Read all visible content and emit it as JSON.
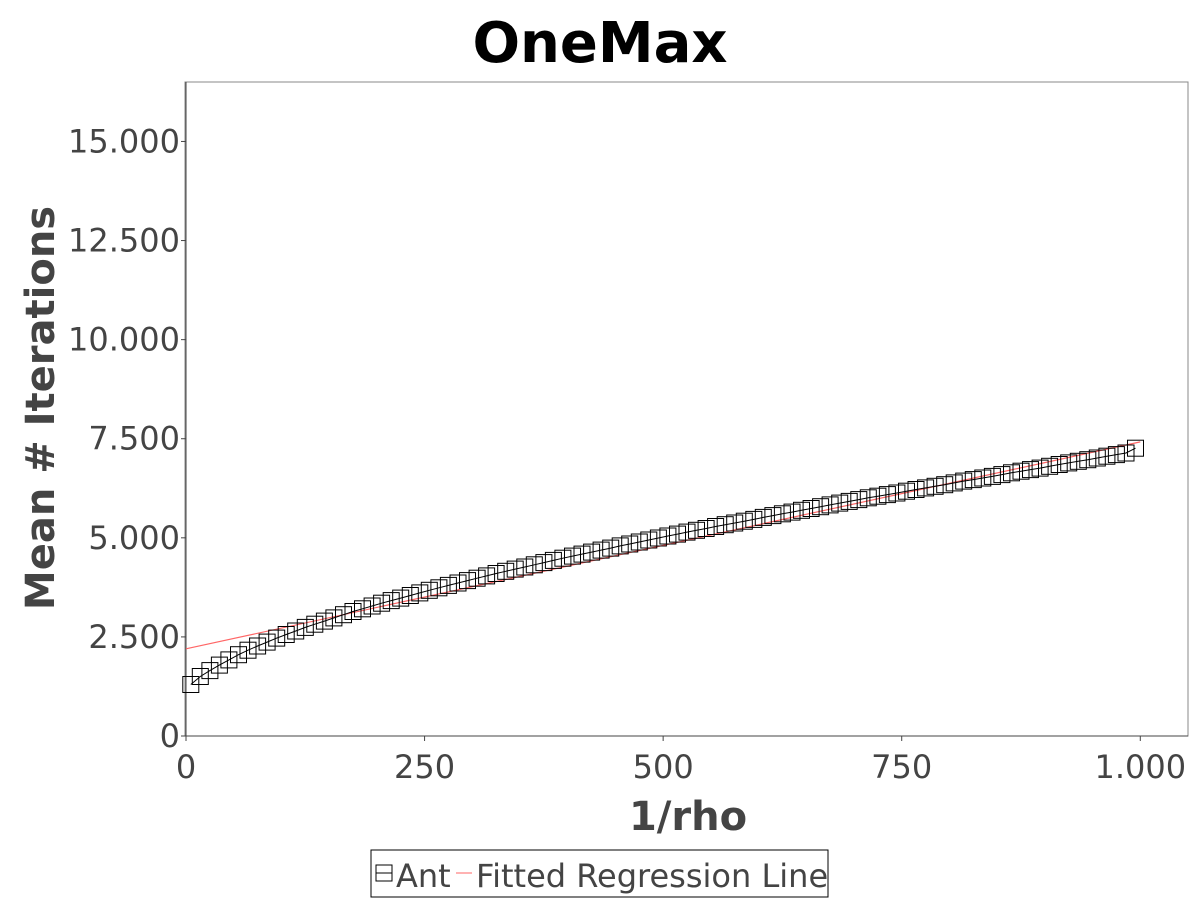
{
  "chart_data": {
    "type": "scatter",
    "title": "OneMax",
    "xlabel": "1/rho",
    "ylabel": "Mean # Iterations",
    "xlim": [
      0,
      1050
    ],
    "ylim": [
      0,
      16500
    ],
    "x_ticks": [
      0,
      250,
      500,
      750,
      1000
    ],
    "x_tick_labels": [
      "0",
      "250",
      "500",
      "750",
      "1.000"
    ],
    "y_ticks": [
      0,
      2500,
      5000,
      7500,
      10000,
      12500,
      15000
    ],
    "y_tick_labels": [
      "0",
      "2.500",
      "5.000",
      "7.500",
      "10.000",
      "12.500",
      "15.000"
    ],
    "grid": false,
    "legend_position": "bottom-center",
    "series": [
      {
        "name": "Ant",
        "marker": "square",
        "color": "#000000",
        "x": [
          5,
          15,
          25,
          35,
          45,
          55,
          65,
          75,
          85,
          95,
          105,
          115,
          125,
          135,
          145,
          155,
          165,
          175,
          185,
          195,
          205,
          215,
          225,
          235,
          245,
          255,
          265,
          275,
          285,
          295,
          305,
          315,
          325,
          335,
          345,
          355,
          365,
          375,
          385,
          395,
          405,
          415,
          425,
          435,
          445,
          455,
          465,
          475,
          485,
          495,
          505,
          515,
          525,
          535,
          545,
          555,
          565,
          575,
          585,
          595,
          605,
          615,
          625,
          635,
          645,
          655,
          665,
          675,
          685,
          695,
          705,
          715,
          725,
          735,
          745,
          755,
          765,
          775,
          785,
          795,
          805,
          815,
          825,
          835,
          845,
          855,
          865,
          875,
          885,
          895,
          905,
          915,
          925,
          935,
          945,
          955,
          965,
          975,
          985,
          995
        ],
        "y": [
          1300,
          1500,
          1650,
          1790,
          1920,
          2050,
          2165,
          2270,
          2370,
          2470,
          2560,
          2650,
          2740,
          2820,
          2900,
          2980,
          3060,
          3140,
          3210,
          3280,
          3350,
          3415,
          3480,
          3545,
          3610,
          3675,
          3740,
          3800,
          3860,
          3920,
          3980,
          4040,
          4100,
          4155,
          4210,
          4265,
          4320,
          4375,
          4430,
          4485,
          4540,
          4590,
          4640,
          4690,
          4740,
          4795,
          4845,
          4895,
          4945,
          4995,
          5045,
          5095,
          5145,
          5190,
          5235,
          5285,
          5330,
          5375,
          5420,
          5465,
          5515,
          5560,
          5605,
          5650,
          5695,
          5740,
          5785,
          5830,
          5875,
          5920,
          5965,
          6010,
          6050,
          6090,
          6130,
          6175,
          6220,
          6260,
          6300,
          6340,
          6385,
          6430,
          6470,
          6510,
          6550,
          6595,
          6640,
          6680,
          6720,
          6760,
          6805,
          6850,
          6890,
          6930,
          6970,
          7015,
          7060,
          7100,
          7140,
          7260
        ]
      },
      {
        "name": "Fitted Regression Line",
        "type": "line",
        "color": "#ff6666",
        "x": [
          0,
          1000
        ],
        "y": [
          2200,
          7420
        ]
      }
    ]
  }
}
